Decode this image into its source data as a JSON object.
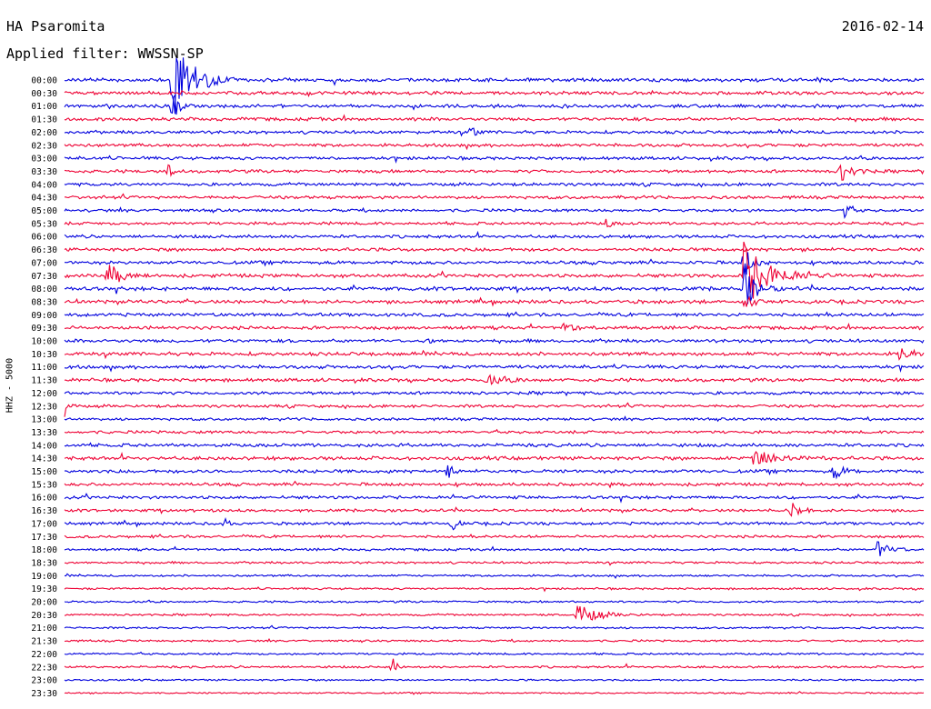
{
  "header": {
    "station": "HA Psaromita",
    "filter": "Applied filter: WWSSN-SP",
    "date": "2016-02-14",
    "channel": "HHZ - 5000"
  },
  "colors": {
    "blue": "#0000dd",
    "red": "#ee0033"
  },
  "chart_data": {
    "type": "line",
    "title": "HA Psaromita",
    "subtitle": "Applied filter: WWSSN-SP",
    "ylabel": "HHZ - 5000",
    "rows": [
      "00:00",
      "00:30",
      "01:00",
      "01:30",
      "02:00",
      "02:30",
      "03:00",
      "03:30",
      "04:00",
      "04:30",
      "05:00",
      "05:30",
      "06:00",
      "06:30",
      "07:00",
      "07:30",
      "08:00",
      "08:30",
      "09:00",
      "09:30",
      "10:00",
      "10:30",
      "11:00",
      "11:30",
      "12:00",
      "12:30",
      "13:00",
      "13:30",
      "14:00",
      "14:30",
      "15:00",
      "15:30",
      "16:00",
      "16:30",
      "17:00",
      "17:30",
      "18:00",
      "18:30",
      "19:00",
      "19:30",
      "20:00",
      "20:30",
      "21:00",
      "21:30",
      "22:00",
      "22:30",
      "23:00",
      "23:30"
    ],
    "row_colors": [
      "blue",
      "red"
    ],
    "row_noise": [
      1.6,
      1.5,
      1.5,
      1.5,
      1.4,
      1.4,
      1.4,
      1.4,
      1.4,
      1.4,
      1.3,
      1.3,
      1.4,
      1.5,
      1.5,
      1.6,
      1.7,
      1.6,
      1.5,
      1.5,
      1.5,
      1.6,
      1.5,
      1.5,
      1.4,
      1.3,
      1.2,
      1.3,
      1.5,
      1.6,
      1.5,
      1.4,
      1.4,
      1.3,
      1.3,
      1.2,
      1.1,
      1.0,
      0.9,
      0.9,
      0.9,
      0.9,
      0.9,
      0.9,
      0.9,
      1.0,
      0.8,
      0.7
    ],
    "events": [
      {
        "row": 0,
        "t": 0.125,
        "amp": 55,
        "dur": 0.02
      },
      {
        "row": 2,
        "t": 0.125,
        "amp": 20,
        "dur": 0.006
      },
      {
        "row": 4,
        "t": 0.473,
        "amp": 12,
        "dur": 0.004
      },
      {
        "row": 7,
        "t": 0.12,
        "amp": 10,
        "dur": 0.004
      },
      {
        "row": 7,
        "t": 0.902,
        "amp": 13,
        "dur": 0.012
      },
      {
        "row": 10,
        "t": 0.907,
        "amp": 10,
        "dur": 0.006
      },
      {
        "row": 11,
        "t": 0.63,
        "amp": 6,
        "dur": 0.005
      },
      {
        "row": 14,
        "t": 0.79,
        "amp": 22,
        "dur": 0.008
      },
      {
        "row": 15,
        "t": 0.051,
        "amp": 14,
        "dur": 0.012
      },
      {
        "row": 15,
        "t": 0.79,
        "amp": 38,
        "dur": 0.025
      },
      {
        "row": 16,
        "t": 0.79,
        "amp": 26,
        "dur": 0.012
      },
      {
        "row": 17,
        "t": 0.79,
        "amp": 12,
        "dur": 0.008
      },
      {
        "row": 19,
        "t": 0.58,
        "amp": 6,
        "dur": 0.012
      },
      {
        "row": 20,
        "t": 0.42,
        "amp": 6,
        "dur": 0.005
      },
      {
        "row": 21,
        "t": 0.97,
        "amp": 6,
        "dur": 0.02
      },
      {
        "row": 23,
        "t": 0.49,
        "amp": 5,
        "dur": 0.02
      },
      {
        "row": 25,
        "t": 0.0,
        "amp": 12,
        "dur": 0.004
      },
      {
        "row": 29,
        "t": 0.8,
        "amp": 10,
        "dur": 0.025
      },
      {
        "row": 30,
        "t": 0.445,
        "amp": 9,
        "dur": 0.006
      },
      {
        "row": 30,
        "t": 0.895,
        "amp": 9,
        "dur": 0.01
      },
      {
        "row": 33,
        "t": 0.845,
        "amp": 17,
        "dur": 0.007
      },
      {
        "row": 34,
        "t": 0.45,
        "amp": 8,
        "dur": 0.006
      },
      {
        "row": 34,
        "t": 0.186,
        "amp": 9,
        "dur": 0.003
      },
      {
        "row": 36,
        "t": 0.945,
        "amp": 9,
        "dur": 0.014
      },
      {
        "row": 41,
        "t": 0.595,
        "amp": 13,
        "dur": 0.02
      },
      {
        "row": 45,
        "t": 0.381,
        "amp": 12,
        "dur": 0.004
      }
    ]
  }
}
